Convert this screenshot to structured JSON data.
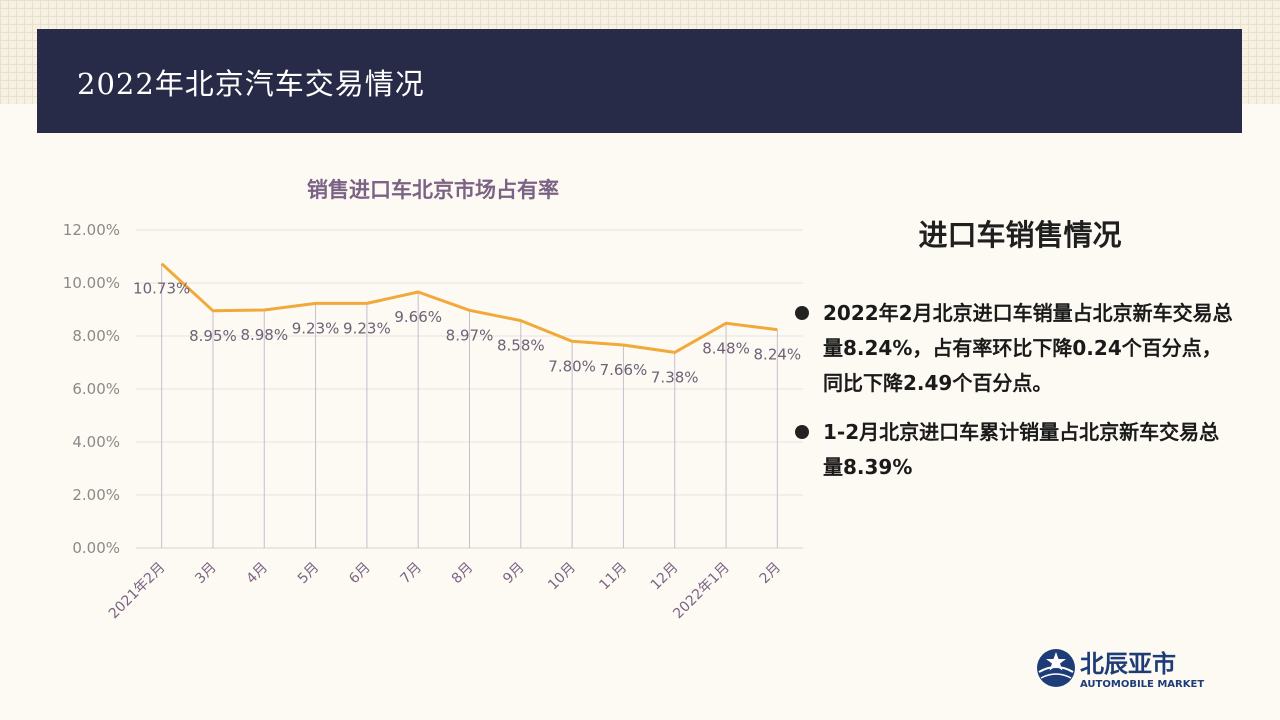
{
  "header": {
    "title": "2022年北京汽车交易情况"
  },
  "chart_data": {
    "type": "line",
    "title": "销售进口车北京市场占有率",
    "categories": [
      "2021年2月",
      "3月",
      "4月",
      "5月",
      "6月",
      "7月",
      "8月",
      "9月",
      "10月",
      "11月",
      "12月",
      "2022年1月",
      "2月"
    ],
    "values": [
      10.73,
      8.95,
      8.98,
      9.23,
      9.23,
      9.66,
      8.97,
      8.58,
      7.8,
      7.66,
      7.38,
      8.48,
      8.24
    ],
    "data_labels": [
      "10.73%",
      "8.95%",
      "8.98%",
      "9.23%",
      "9.23%",
      "9.66%",
      "8.97%",
      "8.58%",
      "7.80%",
      "7.66%",
      "7.38%",
      "8.48%",
      "8.24%"
    ],
    "y_ticks": [
      "0.00%",
      "2.00%",
      "4.00%",
      "6.00%",
      "8.00%",
      "10.00%",
      "12.00%"
    ],
    "ylim": [
      0,
      12
    ],
    "xlabel": "",
    "ylabel": "",
    "grid": true,
    "line_color": "#f2a93b"
  },
  "side_panel": {
    "title": "进口车销售情况",
    "bullets": [
      "2022年2月北京进口车销量占北京新车交易总量8.24%，占有率环比下降0.24个百分点，同比下降2.49个百分点。",
      "1-2月北京进口车累计销量占北京新车交易总量8.39%"
    ]
  },
  "logo": {
    "name": "北辰亚市",
    "subtitle": "AUTOMOBILE MARKET",
    "icon": "globe-star-icon",
    "color": "#1e3c78"
  }
}
